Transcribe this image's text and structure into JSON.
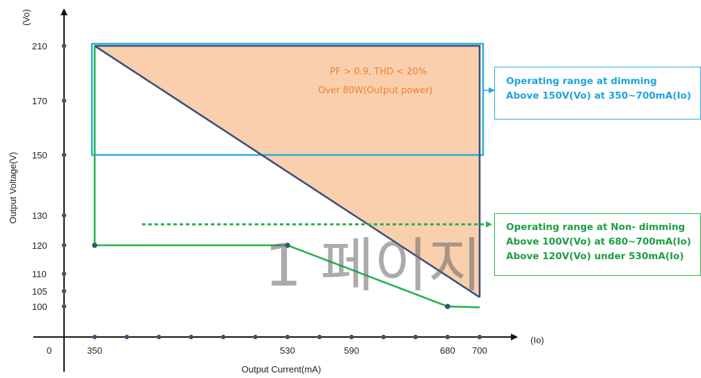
{
  "chart_data": {
    "type": "line",
    "y_axis": {
      "unit_label": "(Vo)",
      "title": "Output Voltage(V)",
      "ticks": [
        100,
        105,
        110,
        120,
        130,
        150,
        170,
        210
      ],
      "tick_labels": [
        "100",
        "105",
        "110",
        "120",
        "130",
        "150",
        "170",
        "210"
      ]
    },
    "x_axis": {
      "unit_label": "(Io)",
      "title": "Output  Current(mA)",
      "ticks": [
        350,
        530,
        590,
        680,
        700
      ],
      "tick_labels": [
        "350",
        "530",
        "590",
        "680",
        "700"
      ],
      "minor_ticks": [
        350,
        380,
        410,
        440,
        470,
        500,
        530,
        560,
        590,
        620,
        650,
        680,
        700
      ]
    },
    "origin_label": "0",
    "series": [
      {
        "role": "dimming-boundary",
        "color": "#3b5178",
        "points": [
          [
            350,
            210
          ],
          [
            700,
            103
          ]
        ]
      },
      {
        "role": "non-dimming-boundary",
        "color": "#23b24b",
        "points": [
          [
            350,
            210
          ],
          [
            350,
            120
          ],
          [
            530,
            120
          ],
          [
            680,
            100
          ],
          [
            700,
            99.7
          ]
        ]
      }
    ],
    "marked_points": [
      [
        350,
        120
      ],
      [
        530,
        120
      ],
      [
        680,
        100
      ]
    ],
    "regions": [
      {
        "role": "shaded-high-pf",
        "fill": "#f9cfae",
        "polygon": [
          [
            350,
            210
          ],
          [
            700,
            210
          ],
          [
            700,
            103
          ]
        ]
      }
    ],
    "rectangles": [
      {
        "role": "dimming-range-box",
        "color": "#2aa9e0",
        "x_range": [
          350,
          700
        ],
        "y_range": [
          150,
          210
        ]
      }
    ],
    "dashed_arrows": [
      {
        "role": "non-dimming-pointer",
        "color": "#23b24b",
        "y": 127,
        "x_from": 380,
        "x_to": 700
      }
    ],
    "annotations": [
      {
        "text": "PF > 0.9,  THD < 20%",
        "color": "#f07f2a"
      },
      {
        "text": "Over 80W(Output power)",
        "color": "#f07f2a"
      }
    ],
    "watermark": "1 페이지"
  },
  "callouts": {
    "dimming": {
      "line1": "Operating range at dimming",
      "line2": "Above 150V(Vo) at 350~700mA(Io)",
      "color": "#1fa3dc"
    },
    "non_dimming": {
      "line1": "Operating range at Non- dimming",
      "line2": "Above 100V(Vo) at 680~700mA(Io)",
      "line3": "Above 120V(Vo) under 530mA(Io)",
      "color": "#1b9f42"
    }
  }
}
